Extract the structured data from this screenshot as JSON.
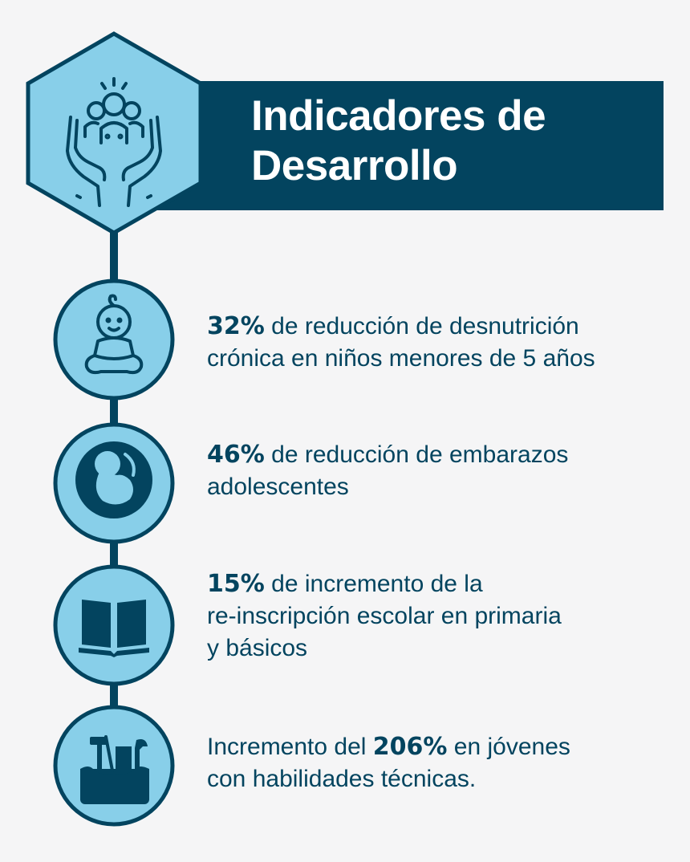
{
  "header": {
    "title_line1": "Indicadores de",
    "title_line2": "Desarrollo",
    "icon": "hands-holding-family-icon"
  },
  "colors": {
    "dark_blue": "#03445f",
    "light_blue": "#88cfe9",
    "background": "#f5f5f6"
  },
  "indicators": [
    {
      "icon": "baby-icon",
      "percent": "32%",
      "text_after": " de reducción de desnutrición",
      "line2": "crónica en niños menores de 5 años"
    },
    {
      "icon": "fetus-icon",
      "percent": "46%",
      "text_after": " de reducción de embarazos",
      "line2": "adolescentes"
    },
    {
      "icon": "open-book-icon",
      "percent": "15%",
      "text_after": " de incremento de la",
      "line2": "re-inscripción escolar en primaria",
      "line3": "y básicos"
    },
    {
      "icon": "toolbox-icon",
      "text_before": "Incremento del ",
      "percent": "206%",
      "text_after": " en jóvenes",
      "line2": "con habilidades técnicas."
    }
  ]
}
